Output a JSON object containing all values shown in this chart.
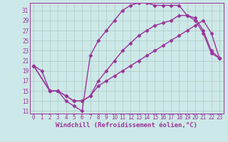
{
  "background_color": "#cde8e8",
  "grid_color": "#b0d0c8",
  "line_color": "#993399",
  "marker": "D",
  "markersize": 2.5,
  "linewidth": 1.0,
  "xlabel": "Windchill (Refroidissement éolien,°C)",
  "xlabel_fontsize": 6.5,
  "tick_fontsize": 5.5,
  "xlim": [
    -0.5,
    23.5
  ],
  "ylim": [
    10.5,
    32.5
  ],
  "yticks": [
    11,
    13,
    15,
    17,
    19,
    21,
    23,
    25,
    27,
    29,
    31
  ],
  "xticks": [
    0,
    1,
    2,
    3,
    4,
    5,
    6,
    7,
    8,
    9,
    10,
    11,
    12,
    13,
    14,
    15,
    16,
    17,
    18,
    19,
    20,
    21,
    22,
    23
  ],
  "lines": [
    {
      "x": [
        0,
        1,
        2,
        3,
        4,
        5,
        6,
        7,
        8,
        9,
        10,
        11,
        12,
        13,
        14,
        15,
        16,
        17,
        18,
        19,
        20,
        21,
        22,
        23
      ],
      "y": [
        20,
        19,
        15,
        15,
        13,
        12,
        11,
        22,
        25,
        27,
        29,
        31,
        32,
        32.5,
        32.5,
        32,
        32,
        32,
        32,
        30,
        29,
        26.5,
        22.5,
        21.5
      ]
    },
    {
      "x": [
        0,
        2,
        3,
        4,
        5,
        6,
        7,
        8,
        9,
        10,
        11,
        12,
        13,
        14,
        15,
        16,
        17,
        18,
        19,
        20,
        21,
        22,
        23
      ],
      "y": [
        20,
        15,
        15,
        14,
        13,
        13,
        14,
        17,
        19,
        21,
        23,
        24.5,
        26,
        27,
        28,
        28.5,
        29,
        30,
        30,
        29.5,
        27,
        23,
        21.5
      ]
    },
    {
      "x": [
        0,
        2,
        3,
        4,
        5,
        6,
        7,
        8,
        9,
        10,
        11,
        12,
        13,
        14,
        15,
        16,
        17,
        18,
        19,
        20,
        21,
        22,
        23
      ],
      "y": [
        20,
        15,
        15,
        14,
        13,
        13,
        14,
        16,
        17,
        18,
        19,
        20,
        21,
        22,
        23,
        24,
        25,
        26,
        27,
        28,
        29,
        26.5,
        21.5
      ]
    }
  ]
}
